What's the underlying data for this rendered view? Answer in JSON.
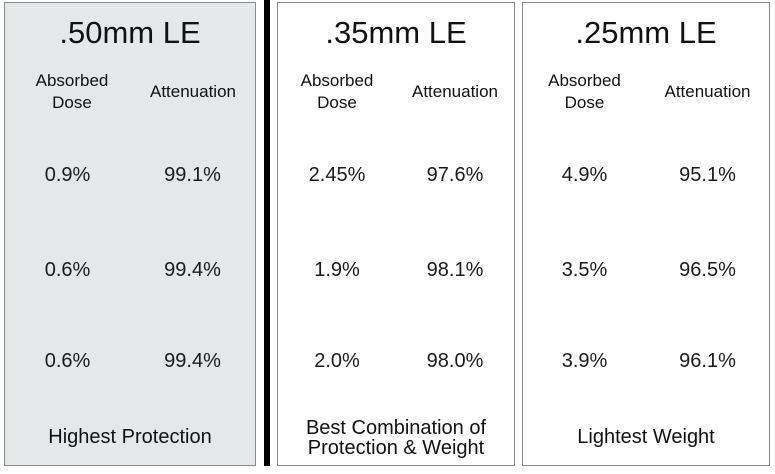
{
  "panels": [
    {
      "title": ".50mm LE",
      "headers": {
        "absorbed_line1": "Absorbed",
        "absorbed_line2": "Dose",
        "attenuation": "Attenuation"
      },
      "rows": [
        {
          "absorbed": "0.9%",
          "attenuation": "99.1%"
        },
        {
          "absorbed": "0.6%",
          "attenuation": "99.4%"
        },
        {
          "absorbed": "0.6%",
          "attenuation": "99.4%"
        }
      ],
      "footer_line1": "Highest Protection",
      "footer_line2": "",
      "background": "#e6e7e8"
    },
    {
      "title": ".35mm LE",
      "headers": {
        "absorbed_line1": "Absorbed",
        "absorbed_line2": "Dose",
        "attenuation": "Attenuation"
      },
      "rows": [
        {
          "absorbed": "2.45%",
          "attenuation": "97.6%"
        },
        {
          "absorbed": "1.9%",
          "attenuation": "98.1%"
        },
        {
          "absorbed": "2.0%",
          "attenuation": "98.0%"
        }
      ],
      "footer_line1": "Best Combination of",
      "footer_line2": "Protection & Weight",
      "background": "#ffffff"
    },
    {
      "title": ".25mm LE",
      "headers": {
        "absorbed_line1": "Absorbed",
        "absorbed_line2": "Dose",
        "attenuation": "Attenuation"
      },
      "rows": [
        {
          "absorbed": "4.9%",
          "attenuation": "95.1%"
        },
        {
          "absorbed": "3.5%",
          "attenuation": "96.5%"
        },
        {
          "absorbed": "3.9%",
          "attenuation": "96.1%"
        }
      ],
      "footer_line1": "Lightest Weight",
      "footer_line2": "",
      "background": "#ffffff"
    }
  ]
}
